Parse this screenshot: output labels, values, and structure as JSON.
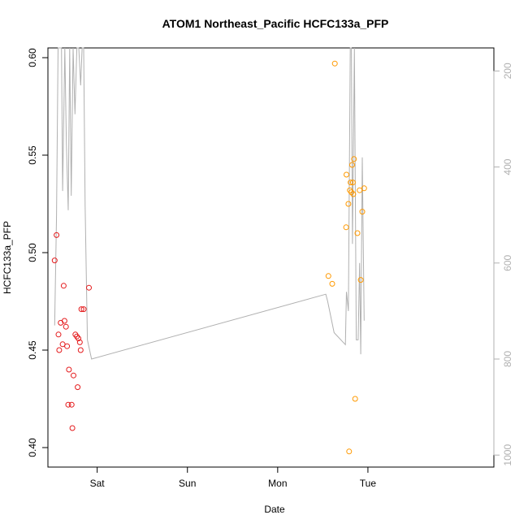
{
  "chart_data": {
    "type": "scatter",
    "title": "ATOM1 Northeast_Pacific HCFC133a_PFP",
    "xlabel": "Date",
    "ylabel": "HCFC133a_PFP",
    "x_axis": {
      "unit": "hours since Fri 00:00",
      "range": [
        10.9,
        129.5
      ],
      "ticks": [
        {
          "label": "Sat",
          "x": 24
        },
        {
          "label": "Sun",
          "x": 48
        },
        {
          "label": "Mon",
          "x": 72
        },
        {
          "label": "Tue",
          "x": 96
        }
      ]
    },
    "y_axis": {
      "range": [
        0.39,
        0.605
      ],
      "ticks": [
        0.4,
        0.45,
        0.5,
        0.55,
        0.6
      ]
    },
    "y2_axis": {
      "range": [
        1025,
        152
      ],
      "ticks": [
        200,
        400,
        600,
        800,
        1000
      ],
      "color": "#b0b0b0"
    },
    "grid": false,
    "series": [
      {
        "color": "#e41a1c",
        "marker": "open-circle",
        "points": [
          [
            12.7,
            0.496
          ],
          [
            13.2,
            0.509
          ],
          [
            13.7,
            0.458
          ],
          [
            13.9,
            0.45
          ],
          [
            14.3,
            0.464
          ],
          [
            14.8,
            0.453
          ],
          [
            15.1,
            0.483
          ],
          [
            15.3,
            0.465
          ],
          [
            15.7,
            0.462
          ],
          [
            16.0,
            0.452
          ],
          [
            16.3,
            0.422
          ],
          [
            16.5,
            0.44
          ],
          [
            17.2,
            0.422
          ],
          [
            17.4,
            0.41
          ],
          [
            17.7,
            0.437
          ],
          [
            18.2,
            0.458
          ],
          [
            18.6,
            0.457
          ],
          [
            18.8,
            0.431
          ],
          [
            19.0,
            0.456
          ],
          [
            19.4,
            0.454
          ],
          [
            19.6,
            0.45
          ],
          [
            19.8,
            0.471
          ],
          [
            20.4,
            0.471
          ],
          [
            21.8,
            0.482
          ]
        ]
      },
      {
        "color": "#ff9900",
        "marker": "open-circle",
        "points": [
          [
            85.5,
            0.488
          ],
          [
            86.5,
            0.484
          ],
          [
            87.2,
            0.597
          ],
          [
            90.2,
            0.513
          ],
          [
            90.3,
            0.54
          ],
          [
            90.8,
            0.525
          ],
          [
            91.0,
            0.398
          ],
          [
            91.2,
            0.532
          ],
          [
            91.4,
            0.536
          ],
          [
            91.6,
            0.531
          ],
          [
            91.8,
            0.545
          ],
          [
            92.0,
            0.536
          ],
          [
            92.1,
            0.53
          ],
          [
            92.3,
            0.548
          ],
          [
            92.6,
            0.425
          ],
          [
            93.2,
            0.51
          ],
          [
            93.8,
            0.532
          ],
          [
            94.1,
            0.486
          ],
          [
            94.5,
            0.521
          ],
          [
            95.0,
            0.533
          ]
        ]
      },
      {
        "name": "",
        "axis": "y2",
        "color": "#b0b0b0",
        "line": true,
        "points": [
          [
            12.7,
            730
          ],
          [
            13.2,
            500
          ],
          [
            13.6,
            152
          ],
          [
            14.5,
            152
          ],
          [
            14.8,
            450
          ],
          [
            15.4,
            152
          ],
          [
            15.8,
            350
          ],
          [
            16.3,
            490
          ],
          [
            16.7,
            152
          ],
          [
            17.1,
            460
          ],
          [
            17.6,
            152
          ],
          [
            18.1,
            290
          ],
          [
            18.6,
            152
          ],
          [
            19.1,
            152
          ],
          [
            19.6,
            230
          ],
          [
            20.0,
            152
          ],
          [
            20.4,
            152
          ],
          [
            20.8,
            480
          ],
          [
            21.4,
            760
          ],
          [
            22.5,
            800
          ],
          [
            84.8,
            665
          ],
          [
            85.3,
            680
          ],
          [
            87.0,
            745
          ],
          [
            90.0,
            770
          ],
          [
            90.3,
            660
          ],
          [
            90.8,
            700
          ],
          [
            91.3,
            152
          ],
          [
            91.6,
            152
          ],
          [
            91.9,
            560
          ],
          [
            92.4,
            152
          ],
          [
            92.9,
            760
          ],
          [
            93.4,
            760
          ],
          [
            93.8,
            600
          ],
          [
            94.1,
            790
          ],
          [
            94.5,
            380
          ],
          [
            95.0,
            720
          ]
        ]
      }
    ]
  }
}
